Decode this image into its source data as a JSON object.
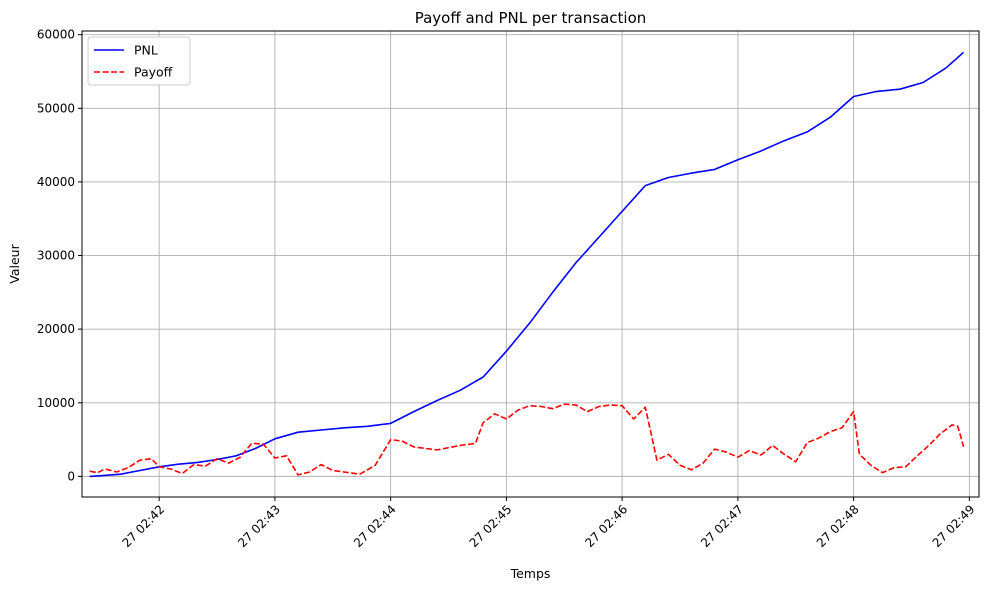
{
  "chart_data": {
    "type": "line",
    "title": "Payoff and PNL per transaction",
    "xlabel": "Temps",
    "ylabel": "Valeur",
    "x_ticks": [
      "27 02:42",
      "27 02:43",
      "27 02:44",
      "27 02:45",
      "27 02:46",
      "27 02:47",
      "27 02:48",
      "27 02:49"
    ],
    "xlim": [
      "02:41:20",
      "02:49:05"
    ],
    "y_ticks": [
      "0",
      "10000",
      "20000",
      "30000",
      "40000",
      "50000",
      "60000"
    ],
    "ylim": [
      -2800,
      60500
    ],
    "grid": true,
    "legend_position": "top-left",
    "series": [
      {
        "name": "PNL",
        "color": "#0000ff",
        "style": "solid",
        "points": [
          [
            "02:41:24",
            0
          ],
          [
            "02:41:30",
            100
          ],
          [
            "02:41:40",
            300
          ],
          [
            "02:41:50",
            800
          ],
          [
            "02:42:00",
            1300
          ],
          [
            "02:42:10",
            1650
          ],
          [
            "02:42:20",
            1900
          ],
          [
            "02:42:30",
            2300
          ],
          [
            "02:42:40",
            2800
          ],
          [
            "02:42:50",
            3800
          ],
          [
            "02:43:00",
            5100
          ],
          [
            "02:43:12",
            6000
          ],
          [
            "02:43:24",
            6300
          ],
          [
            "02:43:36",
            6600
          ],
          [
            "02:43:48",
            6800
          ],
          [
            "02:44:00",
            7200
          ],
          [
            "02:44:12",
            8800
          ],
          [
            "02:44:24",
            10300
          ],
          [
            "02:44:36",
            11700
          ],
          [
            "02:44:48",
            13500
          ],
          [
            "02:45:00",
            17000
          ],
          [
            "02:45:12",
            20800
          ],
          [
            "02:45:24",
            25000
          ],
          [
            "02:45:36",
            29000
          ],
          [
            "02:45:48",
            32500
          ],
          [
            "02:46:00",
            36000
          ],
          [
            "02:46:12",
            39500
          ],
          [
            "02:46:24",
            40600
          ],
          [
            "02:46:36",
            41200
          ],
          [
            "02:46:48",
            41700
          ],
          [
            "02:47:00",
            43000
          ],
          [
            "02:47:12",
            44200
          ],
          [
            "02:47:24",
            45600
          ],
          [
            "02:47:36",
            46800
          ],
          [
            "02:47:48",
            48800
          ],
          [
            "02:48:00",
            51600
          ],
          [
            "02:48:12",
            52300
          ],
          [
            "02:48:24",
            52600
          ],
          [
            "02:48:36",
            53500
          ],
          [
            "02:48:48",
            55500
          ],
          [
            "02:48:57",
            57600
          ]
        ]
      },
      {
        "name": "Payoff",
        "color": "#ff0000",
        "style": "dashed",
        "points": [
          [
            "02:41:24",
            700
          ],
          [
            "02:41:28",
            500
          ],
          [
            "02:41:32",
            1000
          ],
          [
            "02:41:38",
            600
          ],
          [
            "02:41:44",
            1200
          ],
          [
            "02:41:50",
            2200
          ],
          [
            "02:41:56",
            2400
          ],
          [
            "02:42:00",
            1300
          ],
          [
            "02:42:06",
            1000
          ],
          [
            "02:42:12",
            400
          ],
          [
            "02:42:18",
            1600
          ],
          [
            "02:42:24",
            1400
          ],
          [
            "02:42:30",
            2400
          ],
          [
            "02:42:36",
            1800
          ],
          [
            "02:42:42",
            2600
          ],
          [
            "02:42:48",
            4500
          ],
          [
            "02:42:54",
            4400
          ],
          [
            "02:43:00",
            2500
          ],
          [
            "02:43:06",
            2800
          ],
          [
            "02:43:12",
            200
          ],
          [
            "02:43:18",
            600
          ],
          [
            "02:43:24",
            1600
          ],
          [
            "02:43:30",
            800
          ],
          [
            "02:43:36",
            600
          ],
          [
            "02:43:44",
            300
          ],
          [
            "02:43:52",
            1500
          ],
          [
            "02:44:00",
            5000
          ],
          [
            "02:44:06",
            4800
          ],
          [
            "02:44:12",
            4000
          ],
          [
            "02:44:24",
            3600
          ],
          [
            "02:44:36",
            4200
          ],
          [
            "02:44:44",
            4500
          ],
          [
            "02:44:48",
            7300
          ],
          [
            "02:44:54",
            8500
          ],
          [
            "02:45:00",
            7800
          ],
          [
            "02:45:06",
            9000
          ],
          [
            "02:45:12",
            9600
          ],
          [
            "02:45:18",
            9500
          ],
          [
            "02:45:24",
            9200
          ],
          [
            "02:45:30",
            9800
          ],
          [
            "02:45:36",
            9700
          ],
          [
            "02:45:42",
            8800
          ],
          [
            "02:45:48",
            9500
          ],
          [
            "02:45:54",
            9700
          ],
          [
            "02:46:00",
            9600
          ],
          [
            "02:46:06",
            7800
          ],
          [
            "02:46:12",
            9400
          ],
          [
            "02:46:18",
            2200
          ],
          [
            "02:46:24",
            3000
          ],
          [
            "02:46:30",
            1500
          ],
          [
            "02:46:36",
            900
          ],
          [
            "02:46:42",
            1800
          ],
          [
            "02:46:48",
            3700
          ],
          [
            "02:46:54",
            3300
          ],
          [
            "02:47:00",
            2600
          ],
          [
            "02:47:06",
            3500
          ],
          [
            "02:47:12",
            2900
          ],
          [
            "02:47:18",
            4200
          ],
          [
            "02:47:24",
            3000
          ],
          [
            "02:47:30",
            2000
          ],
          [
            "02:47:36",
            4600
          ],
          [
            "02:47:42",
            5200
          ],
          [
            "02:47:48",
            6100
          ],
          [
            "02:47:54",
            6600
          ],
          [
            "02:48:00",
            8800
          ],
          [
            "02:48:03",
            3000
          ],
          [
            "02:48:09",
            1500
          ],
          [
            "02:48:15",
            500
          ],
          [
            "02:48:21",
            1200
          ],
          [
            "02:48:27",
            1300
          ],
          [
            "02:48:33",
            2800
          ],
          [
            "02:48:39",
            4200
          ],
          [
            "02:48:45",
            5800
          ],
          [
            "02:48:51",
            7000
          ],
          [
            "02:48:54",
            6800
          ],
          [
            "02:48:57",
            4000
          ]
        ]
      }
    ]
  }
}
